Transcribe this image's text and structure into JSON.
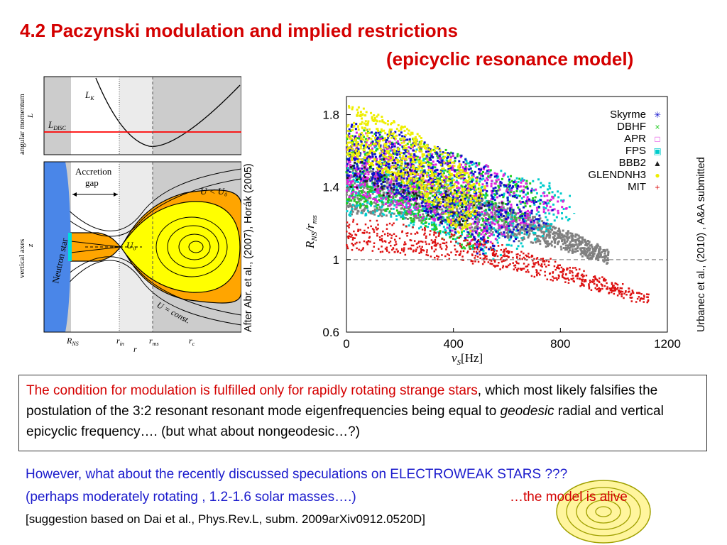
{
  "title": {
    "line1": "4.2 Paczynski modulation and implied restrictions",
    "line2": "(epicyclic resonance model)"
  },
  "left_figure": {
    "top_ylabel": "angular momentum",
    "top_ysymbol": "L",
    "lk_label": "L",
    "lk_sub": "K",
    "ldisc_label": "L",
    "ldisc_sub": "DISC",
    "bottom_ylabel": "vertical axes",
    "bottom_ysymbol": "z",
    "neutron_star": "Neutron star",
    "accretion_gap_1": "Accretion",
    "accretion_gap_2": "gap",
    "u_less": "U < U₀",
    "u0": "U₀",
    "u_const": "U = const.",
    "x_ticks": [
      {
        "main": "R",
        "sub": "NS"
      },
      {
        "main": "r",
        "sub": "in"
      },
      {
        "main": "r",
        "sub": "ms"
      },
      {
        "main": "r",
        "sub": "c"
      }
    ],
    "x_label": "r",
    "colors": {
      "star": "#4a86e8",
      "flow": "#ffa500",
      "core": "#ffff00",
      "shade": "#cccccc",
      "disc_line": "#ff0000"
    }
  },
  "left_caption": "After Abr. et al., (2007), Horák (2005)",
  "right_caption": "Urbanec et al., (2010) , A&A submitted",
  "chart_data": {
    "type": "scatter",
    "xlabel": "ν",
    "xlabel_sub": "S",
    "xlabel_unit": "[Hz]",
    "ylabel": "R",
    "ylabel_sub": "NS",
    "ylabel_mid": "/r",
    "ylabel_sub2": "ms",
    "xlim": [
      0,
      1200
    ],
    "ylim": [
      0.6,
      1.9
    ],
    "x_ticks": [
      "0",
      "400",
      "800",
      "1200"
    ],
    "y_ticks": [
      "0.6",
      "1",
      "1.4",
      "1.8"
    ],
    "reference_line": 1.0,
    "legend_position": "top-right",
    "series": [
      {
        "name": "Skyrme",
        "marker": "✳",
        "color": "#1010cc",
        "y_start": [
          1.45,
          1.75
        ],
        "x_end": [
          500,
          830
        ],
        "y_end": [
          1.02,
          1.25
        ]
      },
      {
        "name": "DBHF",
        "marker": "×",
        "color": "#22cc22",
        "y_start": [
          1.3,
          1.72
        ],
        "x_end": [
          450,
          800
        ],
        "y_end": [
          1.05,
          1.35
        ]
      },
      {
        "name": "APR",
        "marker": "□",
        "color": "#dd22dd",
        "y_start": [
          1.35,
          1.7
        ],
        "x_end": [
          500,
          850
        ],
        "y_end": [
          1.05,
          1.3
        ]
      },
      {
        "name": "FPS",
        "marker": "▣",
        "color": "#00cccc",
        "y_start": [
          1.25,
          1.65
        ],
        "x_end": [
          550,
          980
        ],
        "y_end": [
          1.0,
          1.3
        ]
      },
      {
        "name": "BBB2",
        "marker": "▲",
        "color": "#222222",
        "y_start": [
          1.4,
          1.6
        ],
        "x_end": [
          400,
          600
        ],
        "y_end": [
          1.15,
          1.3
        ]
      },
      {
        "name": "GLENDNH3",
        "marker": "●",
        "color": "#eeee00",
        "y_start": [
          1.55,
          1.85
        ],
        "x_end": [
          450,
          520
        ],
        "y_end": [
          1.1,
          1.4
        ]
      },
      {
        "name": "MIT",
        "marker": "+",
        "color": "#dd1111",
        "y_start": [
          1.05,
          1.22
        ],
        "x_end": [
          1130,
          1130
        ],
        "y_end": [
          0.75,
          0.8
        ]
      }
    ],
    "gray_band": {
      "color": "#808080",
      "y_start": [
        1.25,
        1.5
      ],
      "x_end": [
        980,
        980
      ],
      "y_end": [
        0.98,
        1.05
      ]
    }
  },
  "textbox": {
    "red_part": "The condition for modulation is fulfilled only for rapidly rotating strange stars",
    "rest_1": ", which most likely falsifies the postulation of the 3:2 resonant resonant mode eigenfrequencies being equal to ",
    "italic": "geodesic",
    "rest_2": " radial and vertical epicyclic frequency…. (but what about nongeodesic…?)"
  },
  "bottom": {
    "line1": "However, what about the recently discussed speculations on ELECTROWEAK STARS ???",
    "line2": "(perhaps moderately rotating , 1.2-1.6 solar masses….)",
    "alive": "…the model is alive",
    "line3": "[suggestion based on Dai et al., Phys.Rev.L, subm. 2009arXiv0912.0520D]"
  }
}
